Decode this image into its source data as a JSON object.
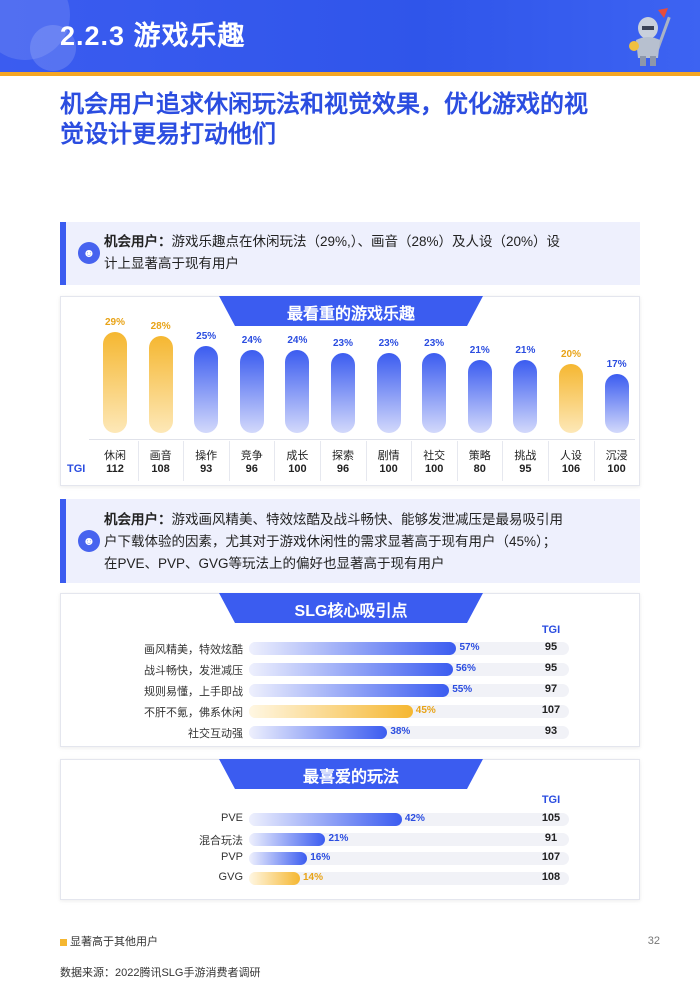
{
  "header": {
    "title": "2.2.3 游戏乐趣"
  },
  "subtitle_line1": "机会用户追求休闲玩法和视觉效果，优化游戏的视",
  "subtitle_line2": "觉设计更易打动他们",
  "callout1": {
    "label": "机会用户：",
    "line1": "游戏乐趣点在休闲玩法（29%,）、画音（28%）及人设（20%）设",
    "line2": "计上显著高于现有用户"
  },
  "chart1": {
    "title": "最看重的游戏乐趣",
    "tgi_label": "TGI",
    "chart_data": {
      "type": "bar",
      "title": "最看重的游戏乐趣",
      "categories": [
        "休闲",
        "画音",
        "操作",
        "竞争",
        "成长",
        "探索",
        "剧情",
        "社交",
        "策略",
        "挑战",
        "人设",
        "沉浸"
      ],
      "values": [
        29,
        28,
        25,
        24,
        24,
        23,
        23,
        23,
        21,
        21,
        20,
        17
      ],
      "labels": [
        "29%",
        "28%",
        "25%",
        "24%",
        "24%",
        "23%",
        "23%",
        "23%",
        "21%",
        "21%",
        "20%",
        "17%"
      ],
      "tgi": [
        "112",
        "108",
        "93",
        "96",
        "100",
        "96",
        "100",
        "100",
        "80",
        "95",
        "106",
        "100"
      ],
      "highlight": [
        true,
        true,
        false,
        false,
        false,
        false,
        false,
        false,
        false,
        false,
        true,
        false
      ],
      "ylim": [
        0,
        30
      ]
    }
  },
  "callout2": {
    "label": "机会用户：",
    "line1": "游戏画风精美、特效炫酷及战斗畅快、能够发泄减压是最易吸引用",
    "line2": "户下载体验的因素，尤其对于游戏休闲性的需求显著高于现有用户（45%）；",
    "line3": "在PVE、PVP、GVG等玩法上的偏好也显著高于现有用户"
  },
  "chart2": {
    "title": "SLG核心吸引点",
    "tgi_label": "TGI",
    "chart_data": {
      "type": "bar",
      "orientation": "horizontal",
      "title": "SLG核心吸引点",
      "categories": [
        "画风精美，特效炫酷",
        "战斗畅快，发泄减压",
        "规则易懂，上手即战",
        "不肝不氪，佛系休闲",
        "社交互动强"
      ],
      "values": [
        57,
        56,
        55,
        45,
        38
      ],
      "labels": [
        "57%",
        "56%",
        "55%",
        "45%",
        "38%"
      ],
      "tgi": [
        "95",
        "95",
        "97",
        "107",
        "93"
      ],
      "highlight": [
        false,
        false,
        false,
        true,
        false
      ],
      "xlim": [
        0,
        100
      ]
    }
  },
  "chart3": {
    "title": "最喜爱的玩法",
    "tgi_label": "TGI",
    "chart_data": {
      "type": "bar",
      "orientation": "horizontal",
      "title": "最喜爱的玩法",
      "categories": [
        "PVE",
        "混合玩法",
        "PVP",
        "GVG"
      ],
      "values": [
        42,
        21,
        16,
        14
      ],
      "labels": [
        "42%",
        "21%",
        "16%",
        "14%"
      ],
      "tgi": [
        "105",
        "91",
        "107",
        "108"
      ],
      "highlight": [
        false,
        false,
        false,
        true
      ],
      "xlim": [
        0,
        100
      ]
    }
  },
  "colors": {
    "blue": "#3b5cf0",
    "orange": "#f5b731",
    "blue_light": "#d3d9fb",
    "orange_light": "#fde8b8"
  },
  "footnote": "显著高于其他用户",
  "page_number": "32",
  "source": "数据来源：2022腾讯SLG手游消费者调研"
}
